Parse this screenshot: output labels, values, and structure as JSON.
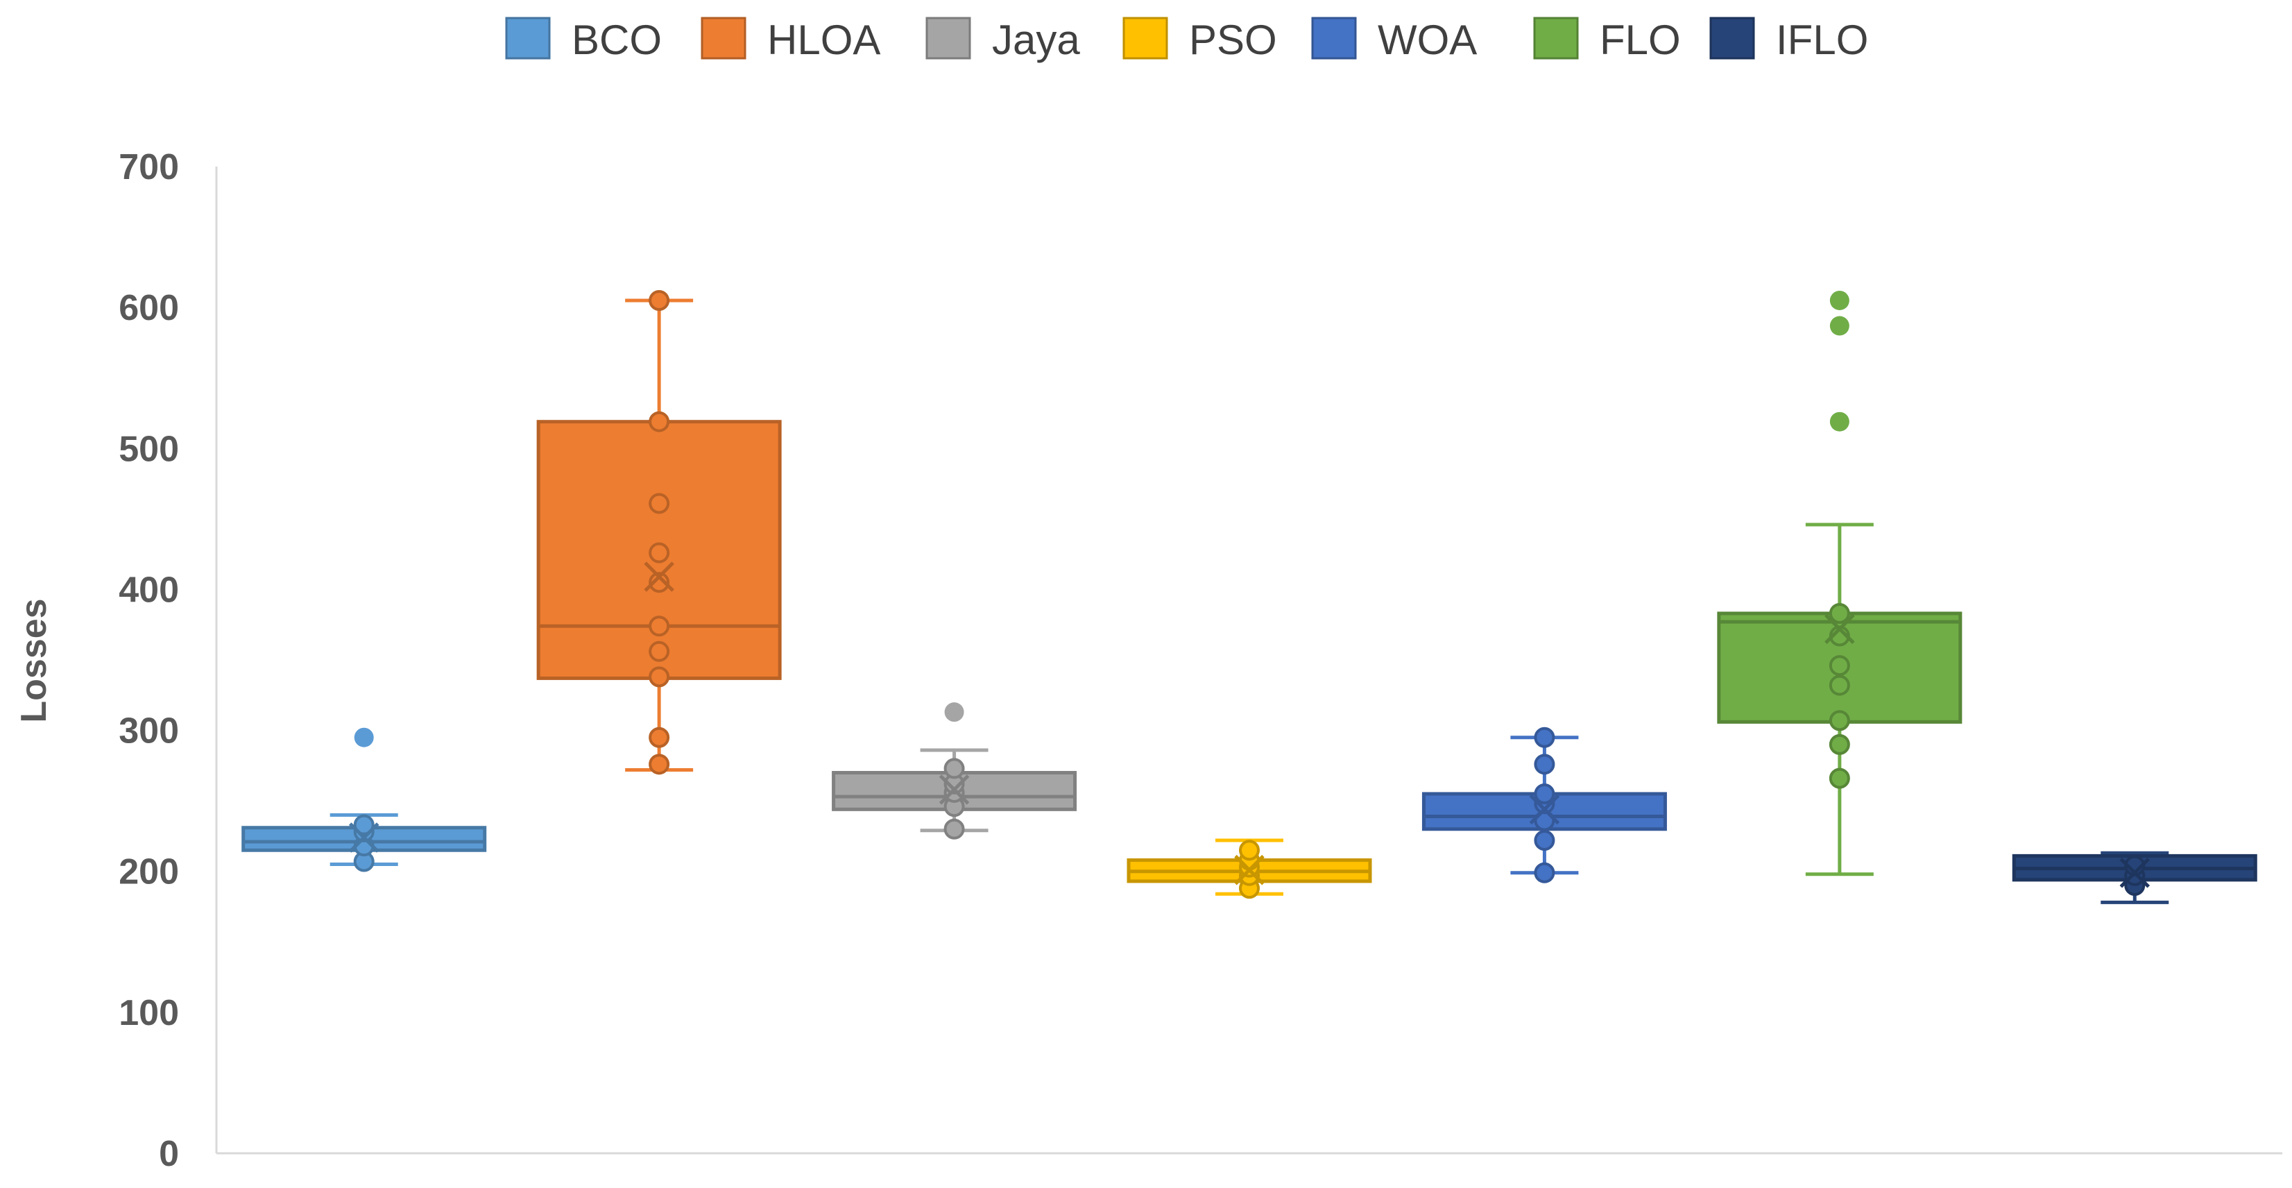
{
  "chart_data": {
    "type": "box",
    "ylabel": "Losses",
    "ylim": [
      0,
      700
    ],
    "yticks": [
      0,
      100,
      200,
      300,
      400,
      500,
      600,
      700
    ],
    "legend_position": "top",
    "series": [
      {
        "name": "BCO",
        "color": "#5B9BD5",
        "min": 205,
        "q1": 215,
        "median": 221,
        "q3": 231,
        "max": 240,
        "mean": 224,
        "points": [
          207,
          218,
          228,
          233
        ],
        "outliers": [
          295
        ]
      },
      {
        "name": "HLOA",
        "color": "#ED7D31",
        "min": 272,
        "q1": 337,
        "median": 374,
        "q3": 519,
        "max": 605,
        "mean": 409,
        "points": [
          276,
          295,
          338,
          356,
          374,
          405,
          426,
          461,
          519,
          605
        ],
        "outliers": []
      },
      {
        "name": "Jaya",
        "color": "#A5A5A5",
        "min": 229,
        "q1": 244,
        "median": 253,
        "q3": 270,
        "max": 286,
        "mean": 258,
        "points": [
          230,
          246,
          256,
          262,
          273
        ],
        "outliers": [
          313
        ]
      },
      {
        "name": "PSO",
        "color": "#FFC000",
        "min": 184,
        "q1": 193,
        "median": 200,
        "q3": 208,
        "max": 222,
        "mean": 201,
        "points": [
          188,
          197,
          203,
          208,
          215
        ],
        "outliers": []
      },
      {
        "name": "WOA",
        "color": "#4472C4",
        "min": 199,
        "q1": 230,
        "median": 239,
        "q3": 255,
        "max": 295,
        "mean": 244,
        "points": [
          199,
          222,
          236,
          248,
          255,
          276,
          295
        ],
        "outliers": []
      },
      {
        "name": "FLO",
        "color": "#70AD47",
        "min": 198,
        "q1": 306,
        "median": 377,
        "q3": 383,
        "max": 446,
        "mean": 372,
        "points": [
          266,
          290,
          307,
          332,
          346,
          367,
          383
        ],
        "outliers": [
          519,
          587,
          605
        ]
      },
      {
        "name": "IFLO",
        "color": "#264478",
        "min": 178,
        "q1": 194,
        "median": 202,
        "q3": 211,
        "max": 213,
        "mean": 199,
        "points": [
          190,
          197,
          204
        ],
        "outliers": []
      }
    ]
  }
}
